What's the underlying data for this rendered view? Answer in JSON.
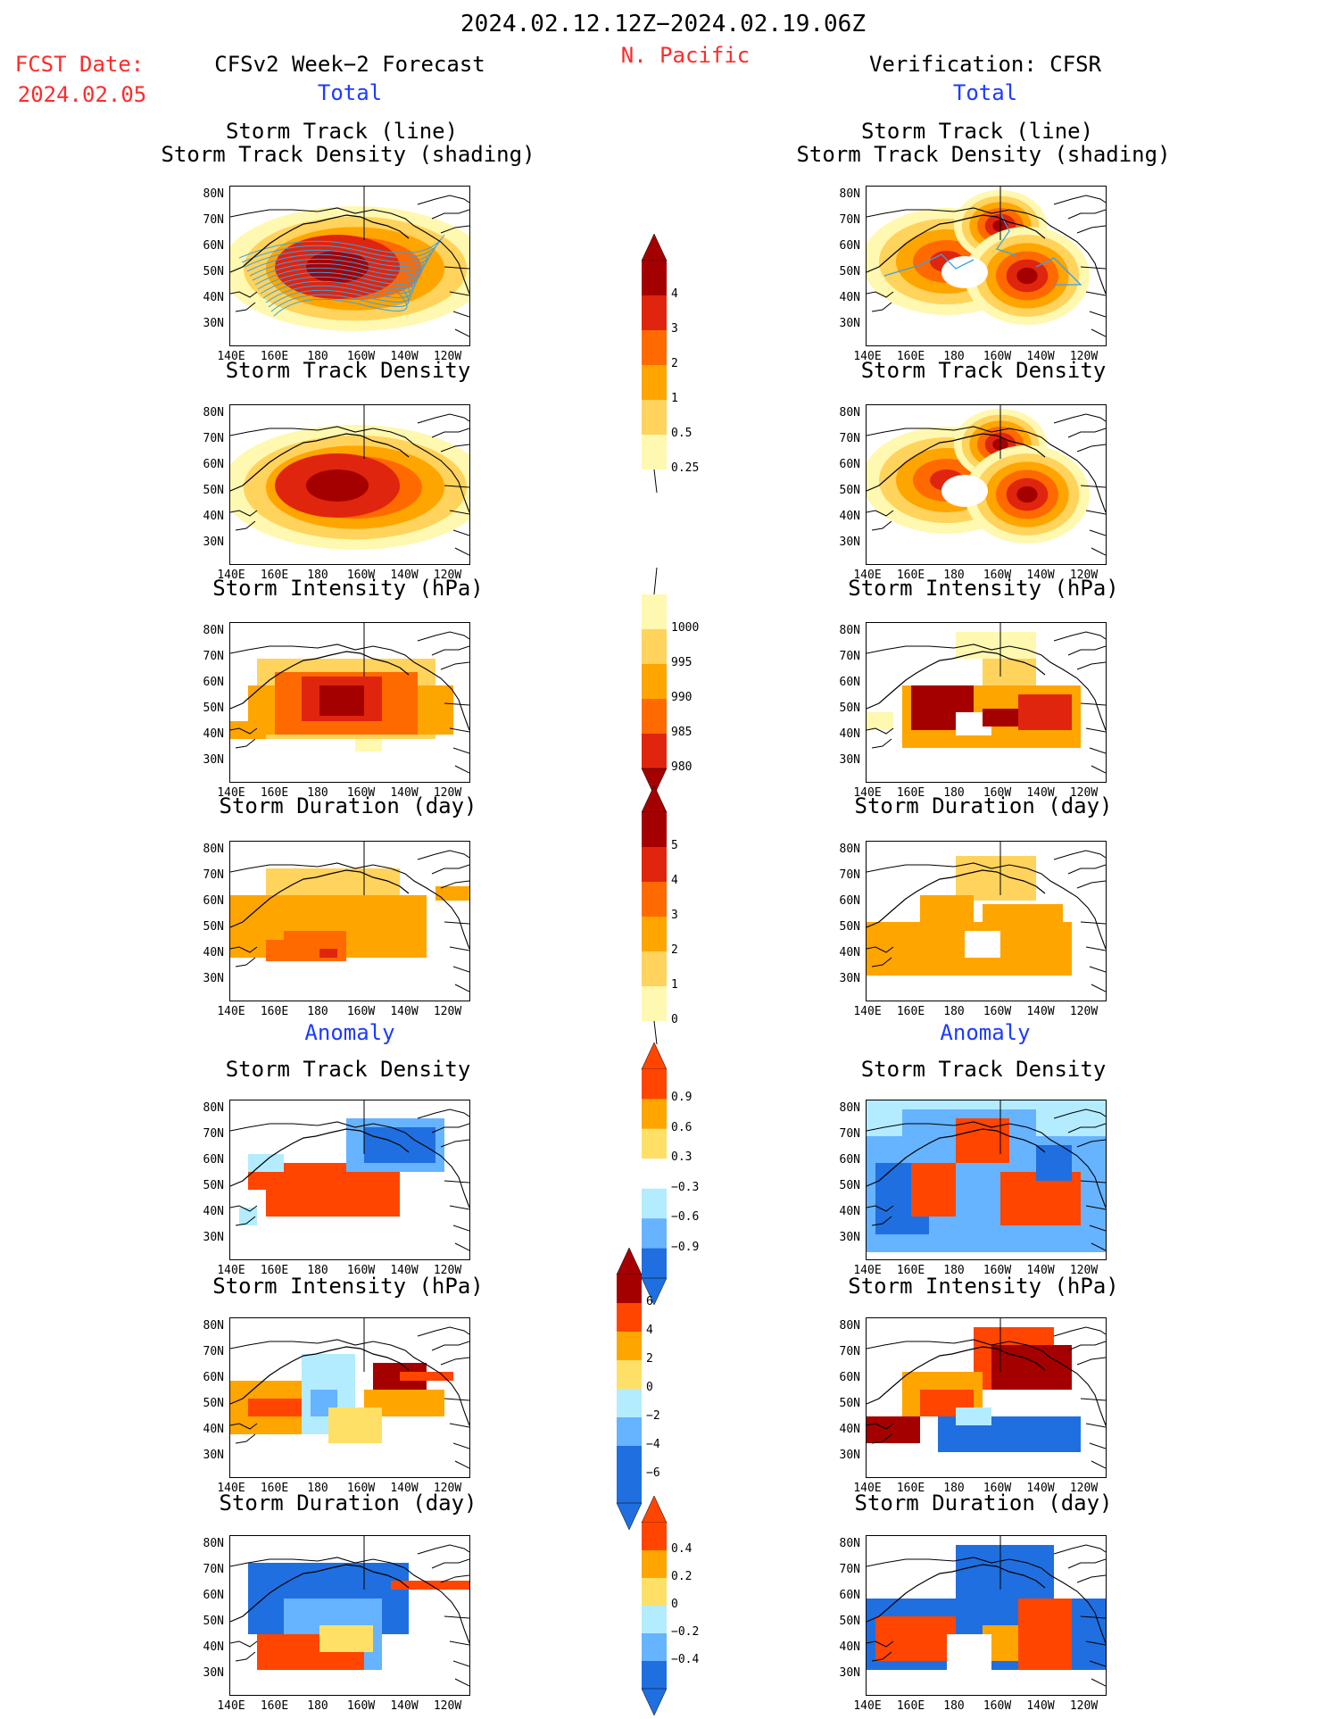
{
  "header": {
    "date_range": "2024.02.12.12Z−2024.02.19.06Z",
    "region": "N. Pacific",
    "fcst_label": "FCST Date:",
    "fcst_date": "2024.02.05",
    "left_title": "CFSv2 Week−2 Forecast",
    "right_title": "Verification: CFSR",
    "total_label": "Total",
    "anomaly_label": "Anomaly"
  },
  "panel_titles": {
    "track_line": "Storm Track (line)",
    "track_density_shading": "Storm Track Density (shading)",
    "track_density": "Storm Track Density",
    "intensity": "Storm Intensity (hPa)",
    "duration": "Storm Duration (day)"
  },
  "axes": {
    "lat_ticks": [
      "80N",
      "70N",
      "60N",
      "50N",
      "40N",
      "30N"
    ],
    "lon_ticks": [
      "140E",
      "160E",
      "180",
      "160W",
      "140W",
      "120W"
    ]
  },
  "colorbars": {
    "density": [
      "4",
      "3",
      "2",
      "1",
      "0.5",
      "0.25"
    ],
    "intensity": [
      "1000",
      "995",
      "990",
      "985",
      "980"
    ],
    "duration": [
      "5",
      "4",
      "3",
      "2",
      "1",
      "0"
    ],
    "density_anom": [
      "0.9",
      "0.6",
      "0.3",
      "−0.3",
      "−0.6",
      "−0.9"
    ],
    "intensity_anom": [
      "6",
      "4",
      "2",
      "0",
      "−2",
      "−4",
      "−6"
    ],
    "duration_anom": [
      "0.4",
      "0.2",
      "0",
      "−0.2",
      "−0.4"
    ]
  },
  "colors": {
    "warm": [
      "#fff8b0",
      "#ffd35c",
      "#ffa500",
      "#ff6a00",
      "#e0250e",
      "#a50000"
    ],
    "anom_warm": [
      "#ffe066",
      "#ffa500",
      "#ff4500"
    ],
    "anom_cool": [
      "#b3ecff",
      "#66b3ff",
      "#1f6fe0"
    ],
    "track_line": "#3aa0e6"
  }
}
